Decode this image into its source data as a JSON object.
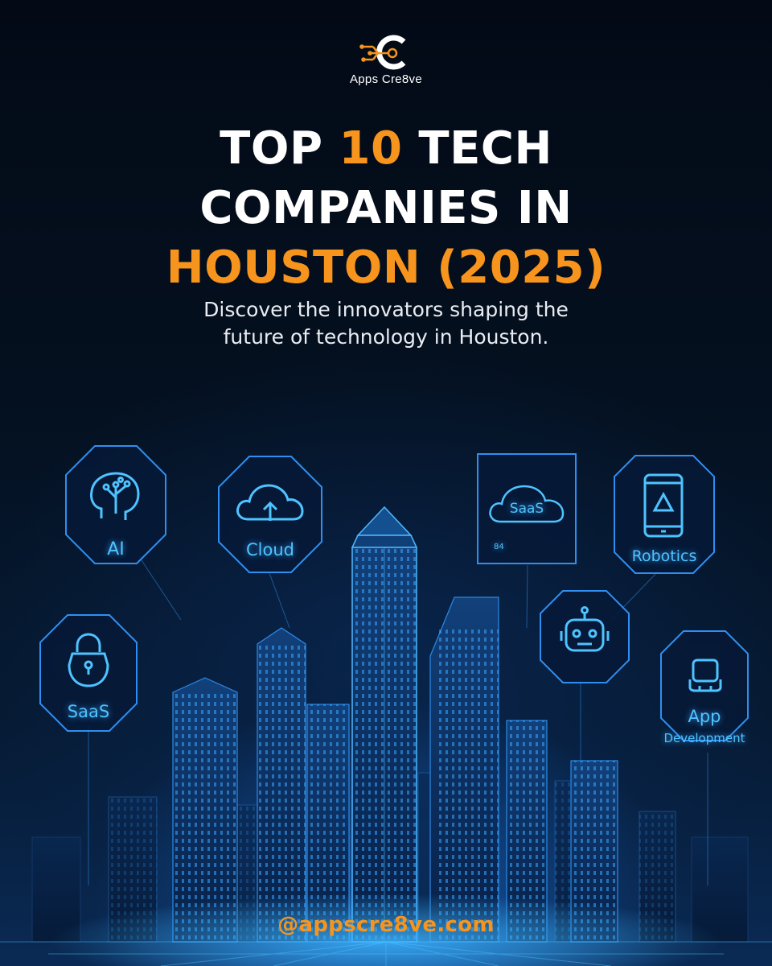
{
  "brand": {
    "name": "Apps Cre8ve",
    "logo_icon": "circuit-c-logo-icon"
  },
  "headline": {
    "line1_pre": "TOP ",
    "line1_highlight": "10",
    "line1_post": " TECH",
    "line2": "COMPANIES IN",
    "line3": "HOUSTON (2025)"
  },
  "subtitle": {
    "line1": "Discover the innovators shaping the",
    "line2": "future of technology in Houston."
  },
  "badges": {
    "ai": {
      "label": "AI",
      "icon": "brain-tree-icon"
    },
    "cloud": {
      "label": "Cloud",
      "icon": "cloud-upload-icon"
    },
    "saas_cloud": {
      "label": "SaaS",
      "caption": "84",
      "icon": "cloud-icon"
    },
    "robotics": {
      "label": "Robotics",
      "icon": "smartphone-icon"
    },
    "saas_lock": {
      "label": "SaaS",
      "icon": "lock-icon"
    },
    "robot": {
      "icon": "robot-head-icon"
    },
    "app": {
      "label": "App",
      "sublabel": "Development",
      "icon": "app-device-icon"
    }
  },
  "footer": {
    "handle": "@appscre8ve.com"
  },
  "colors": {
    "accent": "#f7941d",
    "glow": "#4fc3ff",
    "background": "#030a16"
  }
}
